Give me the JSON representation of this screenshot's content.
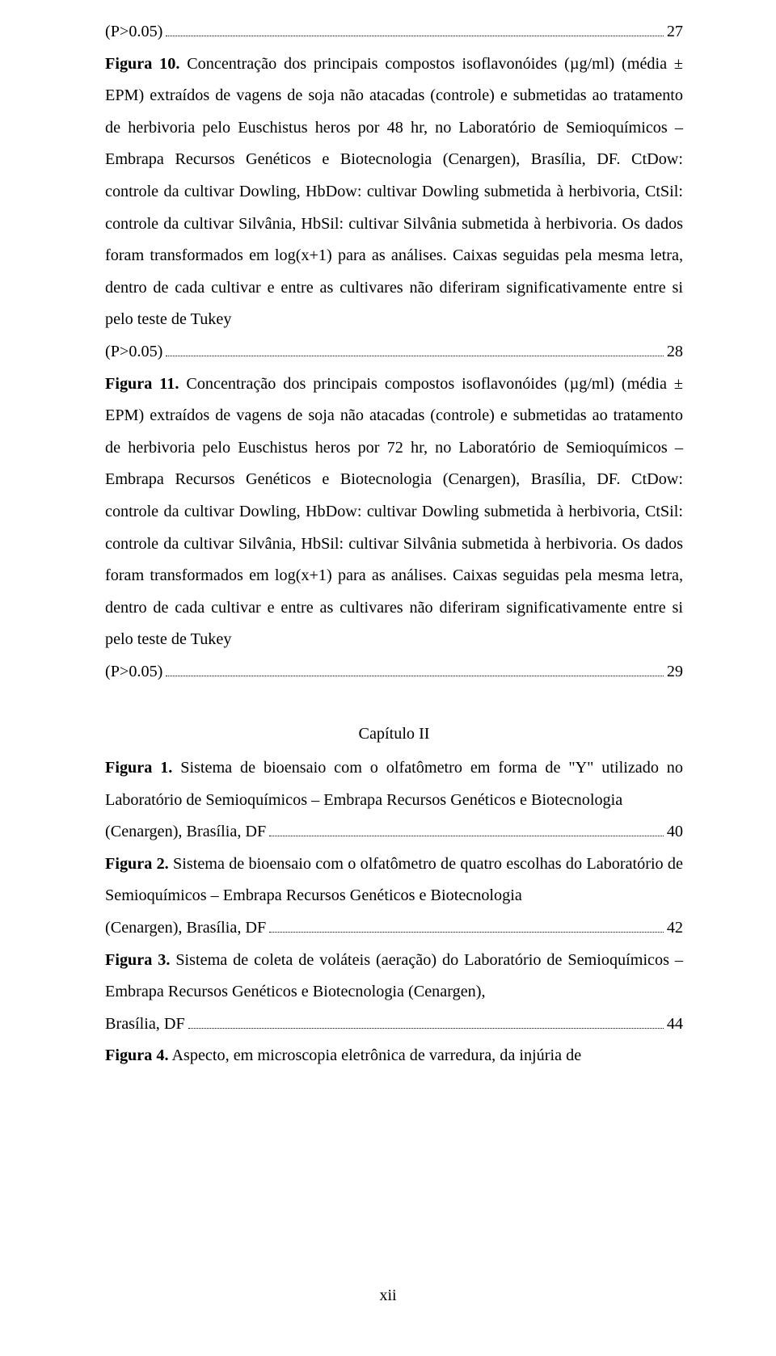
{
  "fig9": {
    "tail_prefix": "(P>0.05)",
    "page": "27"
  },
  "fig10": {
    "label": "Figura 10.",
    "body": " Concentração dos principais compostos isoflavonóides (µg/ml) (média ± EPM) extraídos de vagens de soja não atacadas (controle) e submetidas ao tratamento de herbivoria pelo Euschistus heros por 48 hr, no Laboratório de Semioquímicos – Embrapa Recursos Genéticos e Biotecnologia (Cenargen), Brasília, DF. CtDow: controle da cultivar Dowling, HbDow:  cultivar Dowling submetida à herbivoria, CtSil: controle da cultivar Silvânia, HbSil: cultivar Silvânia submetida à herbivoria. Os dados foram transformados em log(x+1) para as análises. Caixas seguidas pela mesma letra, dentro de cada cultivar e entre as cultivares não diferiram significativamente entre si pelo teste de Tukey ",
    "tail_prefix": "(P>0.05)",
    "page": "28"
  },
  "fig11": {
    "label": "Figura 11.",
    "body": " Concentração dos principais compostos isoflavonóides (µg/ml) (média ± EPM) extraídos de vagens de soja não atacadas (controle) e submetidas ao tratamento de herbivoria pelo Euschistus heros por 72 hr, no Laboratório de Semioquímicos – Embrapa Recursos Genéticos e Biotecnologia (Cenargen), Brasília, DF. CtDow: controle da cultivar Dowling, HbDow:  cultivar Dowling submetida à herbivoria, CtSil: controle da cultivar Silvânia, HbSil: cultivar Silvânia submetida à herbivoria. Os dados foram transformados em log(x+1) para as análises. Caixas seguidas pela mesma letra, dentro de cada cultivar e entre as cultivares não diferiram significativamente entre si pelo teste de Tukey ",
    "tail_prefix": "(P>0.05)",
    "page": "29"
  },
  "chapter2": {
    "title": "Capítulo II"
  },
  "c2fig1": {
    "label": "Figura 1.",
    "body": " Sistema de bioensaio com o olfatômetro em forma de \"Y\" utilizado no Laboratório de Semioquímicos – Embrapa Recursos Genéticos e Biotecnologia ",
    "tail_prefix": "(Cenargen), Brasília, DF",
    "page": "40"
  },
  "c2fig2": {
    "label": "Figura 2.",
    "body": " Sistema de bioensaio com o olfatômetro de quatro escolhas do Laboratório de Semioquímicos – Embrapa Recursos Genéticos e Biotecnologia ",
    "tail_prefix": "(Cenargen), Brasília, DF",
    "page": "42"
  },
  "c2fig3": {
    "label": "Figura 3.",
    "body": " Sistema de coleta de voláteis (aeração) do Laboratório de Semioquímicos – Embrapa Recursos Genéticos e Biotecnologia (Cenargen), ",
    "tail_prefix": "Brasília, DF",
    "page": "44"
  },
  "c2fig4": {
    "label": "Figura 4.",
    "body": " Aspecto, em microscopia eletrônica de varredura, da injúria de"
  },
  "footer": {
    "roman": "xii"
  }
}
